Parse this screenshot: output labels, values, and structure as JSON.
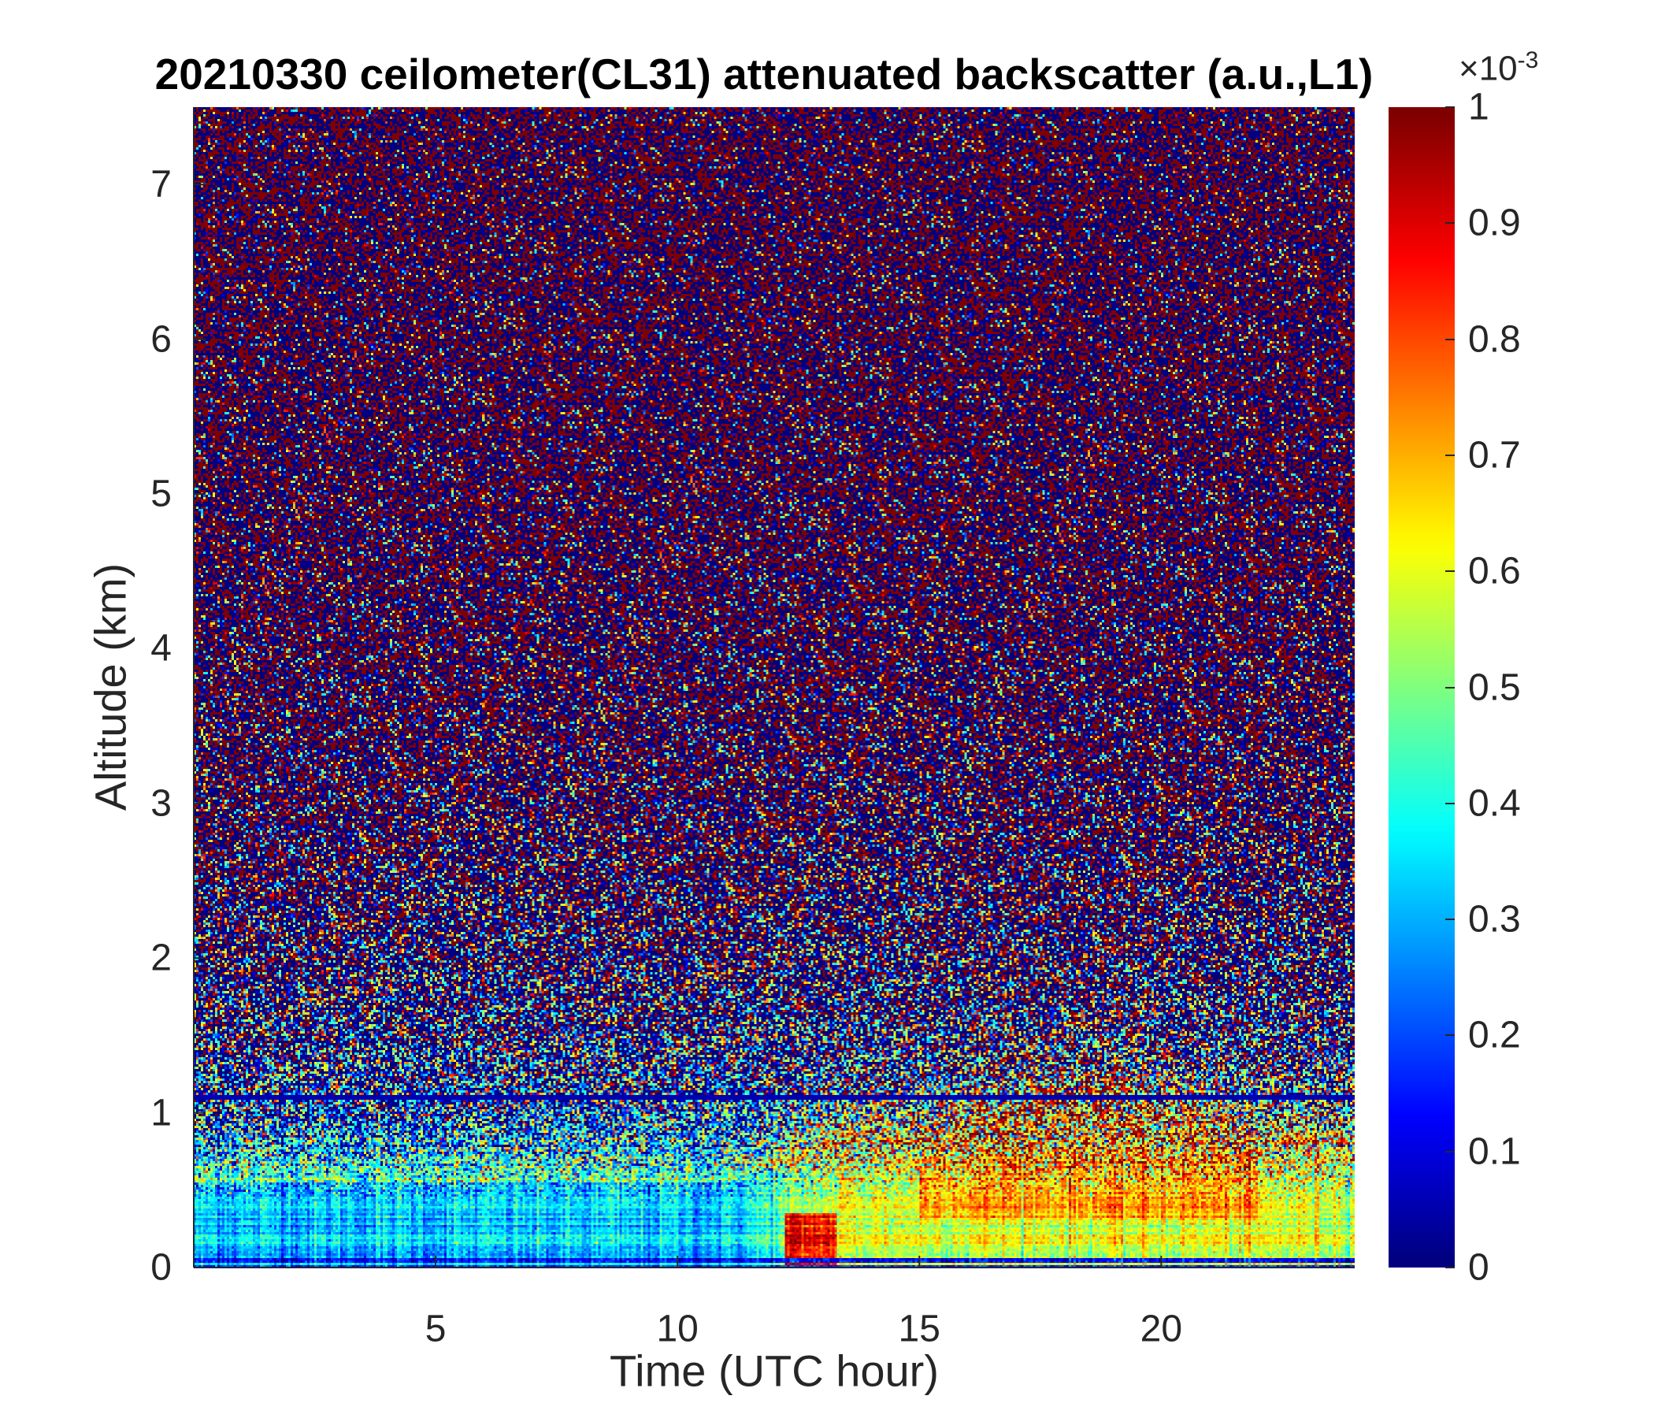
{
  "chart_data": {
    "type": "heatmap",
    "title": "20210330 ceilometer(CL31) attenuated backscatter (a.u.,L1)",
    "xlabel": "Time (UTC hour)",
    "ylabel": "Altitude (km)",
    "xlim": [
      0,
      24
    ],
    "ylim": [
      0,
      7.5
    ],
    "xticks": [
      5,
      10,
      15,
      20
    ],
    "yticks": [
      0,
      1,
      2,
      3,
      4,
      5,
      6,
      7
    ],
    "colormap": "jet",
    "colorbar": {
      "clim": [
        0,
        1
      ],
      "ticks": [
        0,
        0.1,
        0.2,
        0.3,
        0.4,
        0.5,
        0.6,
        0.7,
        0.8,
        0.9,
        1
      ],
      "multiplier_base": "×10",
      "multiplier_exp": "-3"
    },
    "features": [
      {
        "name": "noisy free troposphere",
        "time": [
          0,
          24
        ],
        "altitude_km": [
          1.1,
          7.5
        ],
        "value": "random 0 / ≥1 saturated noise"
      },
      {
        "name": "boundary layer morning",
        "time": [
          0,
          11
        ],
        "altitude_km": [
          0,
          1.1
        ],
        "value": 0.33
      },
      {
        "name": "boundary layer afternoon aerosol",
        "time": [
          13.5,
          24
        ],
        "altitude_km": [
          0,
          0.5
        ],
        "value": 0.6
      },
      {
        "name": "elevated aerosol layer",
        "time": [
          15,
          22
        ],
        "altitude_km": [
          0.3,
          1.0
        ],
        "value": 0.75
      },
      {
        "name": "near-surface enhancement",
        "time": [
          12.2,
          13.3
        ],
        "altitude_km": [
          0,
          0.35
        ],
        "value": 0.9
      },
      {
        "name": "instrument artifact line",
        "time": [
          0,
          24
        ],
        "altitude_km": [
          1.1,
          1.1
        ],
        "value": 0.0
      }
    ]
  }
}
